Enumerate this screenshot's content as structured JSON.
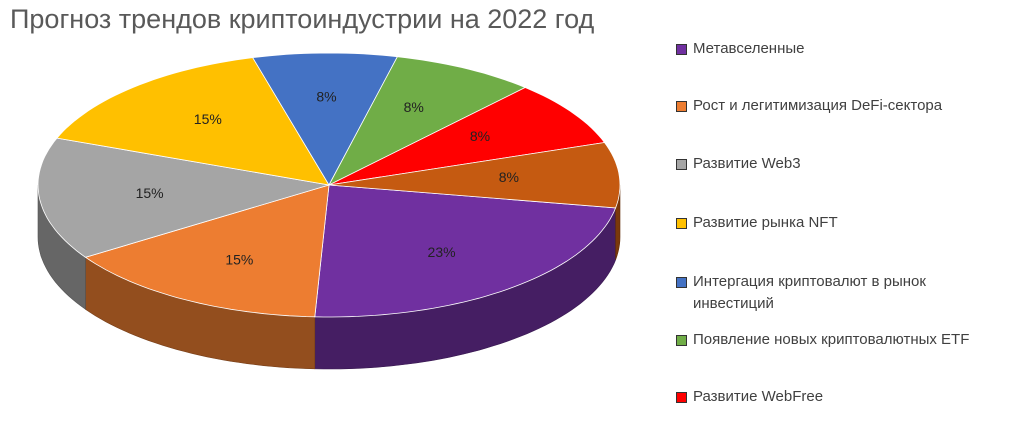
{
  "chart_data": {
    "type": "pie",
    "title": "Прогноз трендов криптоиндустрии на 2022 год",
    "categories": [
      "Метавселенные",
      "Рост и легитимизация DeFi-сектора",
      "Развитие Web3",
      "Развитие рынка NFT",
      "Интергация криптовалют в рынок инвестиций",
      "Появление новых криптовалютных ETF",
      "Развитие WebFree",
      null
    ],
    "values": [
      23,
      15,
      15,
      15,
      8,
      8,
      8,
      8
    ],
    "value_labels": [
      "23%",
      "15%",
      "15%",
      "15%",
      "8%",
      "8%",
      "8%",
      "8%"
    ],
    "colors": [
      "#7030a0",
      "#ed7d31",
      "#a5a5a5",
      "#ffc000",
      "#4472c4",
      "#70ad47",
      "#ff0000",
      "#c55a11"
    ],
    "legend": "right"
  }
}
